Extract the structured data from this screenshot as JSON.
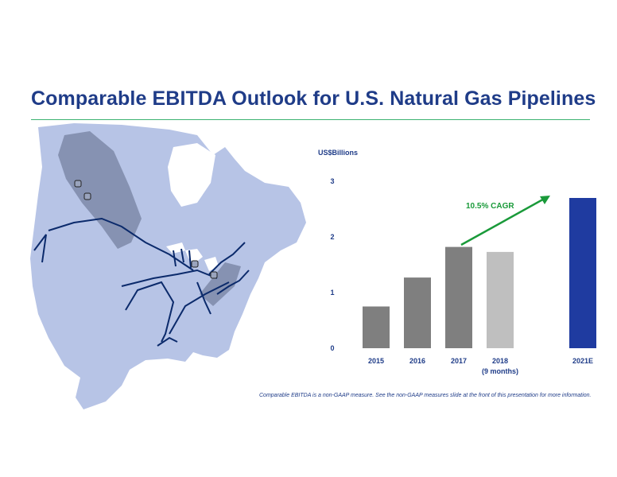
{
  "title": "Comparable EBITDA Outlook for U.S. Natural Gas Pipelines",
  "footnote": "Comparable EBITDA is a non-GAAP measure.  See the non-GAAP measures slide at the front of this presentation for more information.",
  "colors": {
    "title": "#1f3c88",
    "rule": "#3cb371",
    "arrow": "#1a9a3a",
    "land": "#b7c4e6",
    "water": "#ffffff",
    "pipeline": "#0b2a6b"
  },
  "chart_data": {
    "type": "bar",
    "ylabel": "US$Billions",
    "ylim": [
      0,
      3
    ],
    "yticks": [
      0,
      1,
      2,
      3
    ],
    "categories": [
      "2015",
      "2016",
      "2017",
      "2018",
      "2021E"
    ],
    "category_sublabels": [
      "",
      "",
      "",
      "(9 months)",
      ""
    ],
    "values": [
      0.75,
      1.27,
      1.82,
      1.73,
      2.7
    ],
    "bar_colors": [
      "#7f7f7f",
      "#7f7f7f",
      "#7f7f7f",
      "#bfbfbf",
      "#1f3ba0"
    ],
    "annotation": "10.5% CAGR"
  }
}
